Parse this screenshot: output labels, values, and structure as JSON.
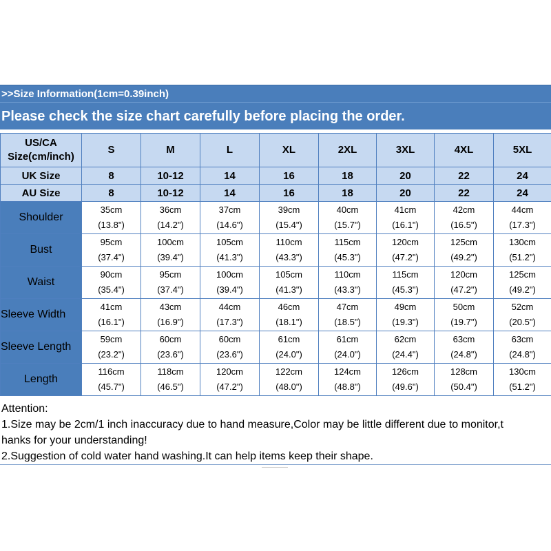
{
  "header": {
    "info_line": ">>Size Information(1cm=0.39inch)",
    "check_line": "Please check the size chart carefully before placing the order."
  },
  "table": {
    "us_label_line1": "US/CA",
    "us_label_line2": "Size(cm/inch)",
    "us_sizes": [
      "S",
      "M",
      "L",
      "XL",
      "2XL",
      "3XL",
      "4XL",
      "5XL"
    ],
    "uk_label": "UK Size",
    "uk_sizes": [
      "8",
      "10-12",
      "14",
      "16",
      "18",
      "20",
      "22",
      "24"
    ],
    "au_label": "AU Size",
    "au_sizes": [
      "8",
      "10-12",
      "14",
      "16",
      "18",
      "20",
      "22",
      "24"
    ],
    "rows": [
      {
        "label": "Shoulder",
        "cm": [
          "35cm",
          "36cm",
          "37cm",
          "39cm",
          "40cm",
          "41cm",
          "42cm",
          "44cm"
        ],
        "inch": [
          "(13.8\")",
          "(14.2\")",
          "(14.6\")",
          "(15.4\")",
          "(15.7\")",
          "(16.1\")",
          "(16.5\")",
          "(17.3\")"
        ]
      },
      {
        "label": "Bust",
        "cm": [
          "95cm",
          "100cm",
          "105cm",
          "110cm",
          "115cm",
          "120cm",
          "125cm",
          "130cm"
        ],
        "inch": [
          "(37.4\")",
          "(39.4\")",
          "(41.3\")",
          "(43.3\")",
          "(45.3\")",
          "(47.2\")",
          "(49.2\")",
          "(51.2\")"
        ]
      },
      {
        "label": "Waist",
        "cm": [
          "90cm",
          "95cm",
          "100cm",
          "105cm",
          "110cm",
          "115cm",
          "120cm",
          "125cm"
        ],
        "inch": [
          "(35.4\")",
          "(37.4\")",
          "(39.4\")",
          "(41.3\")",
          "(43.3\")",
          "(45.3\")",
          "(47.2\")",
          "(49.2\")"
        ]
      },
      {
        "label": "Sleeve Width",
        "cm": [
          "41cm",
          "43cm",
          "44cm",
          "46cm",
          "47cm",
          "49cm",
          "50cm",
          "52cm"
        ],
        "inch": [
          "(16.1\")",
          "(16.9\")",
          "(17.3\")",
          "(18.1\")",
          "(18.5\")",
          "(19.3\")",
          "(19.7\")",
          "(20.5\")"
        ]
      },
      {
        "label": "Sleeve Length",
        "cm": [
          "59cm",
          "60cm",
          "60cm",
          "61cm",
          "61cm",
          "62cm",
          "63cm",
          "63cm"
        ],
        "inch": [
          "(23.2\")",
          "(23.6\")",
          "(23.6\")",
          "(24.0\")",
          "(24.0\")",
          "(24.4\")",
          "(24.8\")",
          "(24.8\")"
        ]
      },
      {
        "label": "Length",
        "cm": [
          "116cm",
          "118cm",
          "120cm",
          "122cm",
          "124cm",
          "126cm",
          "128cm",
          "130cm"
        ],
        "inch": [
          "(45.7\")",
          "(46.5\")",
          "(47.2\")",
          "(48.0\")",
          "(48.8\")",
          "(49.6\")",
          "(50.4\")",
          "(51.2\")"
        ]
      }
    ]
  },
  "attention": {
    "title": "Attention:",
    "line1a": "1.Size may be 2cm/1 inch inaccuracy due to hand measure,Color may be little different due to monitor,t",
    "line1b": "hanks for your understanding!",
    "line2": "2.Suggestion of cold water hand washing.It can help items keep their shape."
  }
}
